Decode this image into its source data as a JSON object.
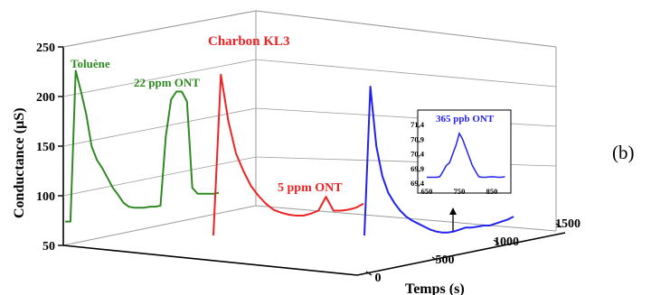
{
  "panel_label": "(b)",
  "colors": {
    "green": "#2f8a22",
    "red": "#ee2222",
    "blue": "#2222ee",
    "axis": "#000000",
    "grid": "#9a9a9a"
  },
  "chart_data": [
    {
      "type": "line",
      "title": "Charbon KL3",
      "ylabel": "Conductance (µS)",
      "zlabel": "Temps (s)",
      "ylim": [
        50,
        250
      ],
      "yticks": [
        "50",
        "100",
        "150",
        "200",
        "250"
      ],
      "depth_ticks": [
        "0",
        "500",
        "1000",
        "1500"
      ],
      "grid": true,
      "series": [
        {
          "name": "Toluène",
          "color": "green",
          "values": [
            74,
            74,
            226,
            205,
            182,
            150,
            136,
            128,
            118,
            108,
            101,
            93,
            89,
            88,
            88,
            88,
            89,
            89,
            90,
            160,
            197,
            205,
            205,
            195,
            108,
            102,
            102,
            102,
            102,
            103
          ]
        },
        {
          "name": "22 ppm ONT",
          "color": "green",
          "values": []
        },
        {
          "name": "5 ppm ONT",
          "color": "red",
          "values": [
            60,
            222,
            175,
            143,
            125,
            110,
            100,
            92,
            86,
            83,
            81,
            80,
            80,
            82,
            85,
            99,
            85,
            85,
            86,
            88,
            92
          ]
        },
        {
          "name": "",
          "color": "blue",
          "values": [
            60,
            210,
            150,
            120,
            103,
            93,
            85,
            79,
            75,
            72,
            69,
            66,
            64,
            63,
            63,
            64,
            66,
            68,
            68,
            69,
            70,
            70,
            72,
            74,
            76,
            79
          ]
        }
      ]
    },
    {
      "type": "line",
      "title": "365 ppb ONT",
      "color": "blue",
      "xlim": [
        650,
        900
      ],
      "xticks": [
        "650",
        "750",
        "850"
      ],
      "ylim": [
        69.4,
        71.4
      ],
      "yticks": [
        "69,4",
        "69,9",
        "70,4",
        "70,9",
        "71,4"
      ],
      "x": [
        650,
        665,
        680,
        690,
        700,
        710,
        720,
        730,
        740,
        750,
        760,
        770,
        780,
        790,
        800,
        810,
        820,
        830,
        850,
        870,
        880,
        890
      ],
      "values": [
        69.6,
        69.6,
        69.6,
        69.62,
        69.8,
        70.0,
        70.1,
        70.4,
        70.7,
        71.1,
        70.9,
        70.6,
        70.3,
        70.0,
        69.8,
        69.62,
        69.6,
        69.6,
        69.62,
        69.6,
        69.6,
        69.62
      ]
    }
  ]
}
